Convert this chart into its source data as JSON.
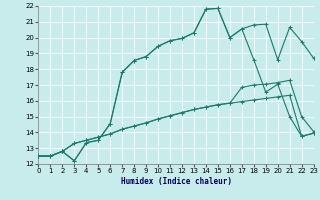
{
  "xlabel": "Humidex (Indice chaleur)",
  "bg_color": "#c8ecec",
  "grid_color": "#ffffff",
  "line_color": "#1a7a6a",
  "xlim": [
    0,
    23
  ],
  "ylim": [
    12,
    22
  ],
  "xticks": [
    0,
    1,
    2,
    3,
    4,
    5,
    6,
    7,
    8,
    9,
    10,
    11,
    12,
    13,
    14,
    15,
    16,
    17,
    18,
    19,
    20,
    21,
    22,
    23
  ],
  "yticks": [
    12,
    13,
    14,
    15,
    16,
    17,
    18,
    19,
    20,
    21,
    22
  ],
  "line1": {
    "x": [
      0,
      1,
      2,
      3,
      4,
      5,
      6,
      7,
      8,
      9,
      10,
      11,
      12,
      13,
      14,
      15,
      16,
      17,
      18,
      19,
      20,
      21,
      22,
      23
    ],
    "y": [
      12.5,
      12.5,
      12.8,
      13.3,
      13.5,
      13.7,
      13.9,
      14.2,
      14.4,
      14.6,
      14.85,
      15.05,
      15.25,
      15.45,
      15.6,
      15.75,
      15.85,
      15.95,
      16.05,
      16.15,
      16.25,
      16.35,
      13.75,
      13.95
    ]
  },
  "line2": {
    "x": [
      0,
      1,
      2,
      3,
      4,
      5,
      6,
      7,
      8,
      9,
      10,
      11,
      12,
      13,
      14,
      15,
      16,
      17,
      18,
      19,
      20,
      21,
      22,
      23
    ],
    "y": [
      12.5,
      12.5,
      12.8,
      13.3,
      13.5,
      13.7,
      13.9,
      14.2,
      14.4,
      14.6,
      14.85,
      15.05,
      15.25,
      15.45,
      15.6,
      15.75,
      15.85,
      16.85,
      17.0,
      17.05,
      17.15,
      17.3,
      15.0,
      14.05
    ]
  },
  "line3": {
    "x": [
      0,
      1,
      2,
      3,
      4,
      5,
      6,
      7,
      8,
      9,
      10,
      11,
      12,
      13,
      14,
      15,
      16,
      17,
      18,
      19,
      20,
      21,
      22,
      23
    ],
    "y": [
      12.5,
      12.5,
      12.8,
      12.2,
      13.35,
      13.5,
      14.55,
      17.8,
      18.55,
      18.8,
      19.45,
      19.8,
      19.95,
      20.3,
      21.8,
      21.85,
      20.0,
      20.55,
      20.8,
      20.85,
      18.6,
      20.65,
      19.75,
      18.7
    ]
  },
  "line4": {
    "x": [
      0,
      1,
      2,
      3,
      4,
      5,
      6,
      7,
      8,
      9,
      10,
      11,
      12,
      13,
      14,
      15,
      16,
      17,
      18,
      19,
      20,
      21,
      22,
      23
    ],
    "y": [
      12.5,
      12.5,
      12.8,
      12.2,
      13.35,
      13.5,
      14.55,
      17.8,
      18.55,
      18.8,
      19.45,
      19.8,
      19.95,
      20.3,
      21.8,
      21.85,
      20.0,
      20.55,
      18.6,
      16.55,
      17.05,
      15.0,
      13.75,
      13.95
    ]
  }
}
